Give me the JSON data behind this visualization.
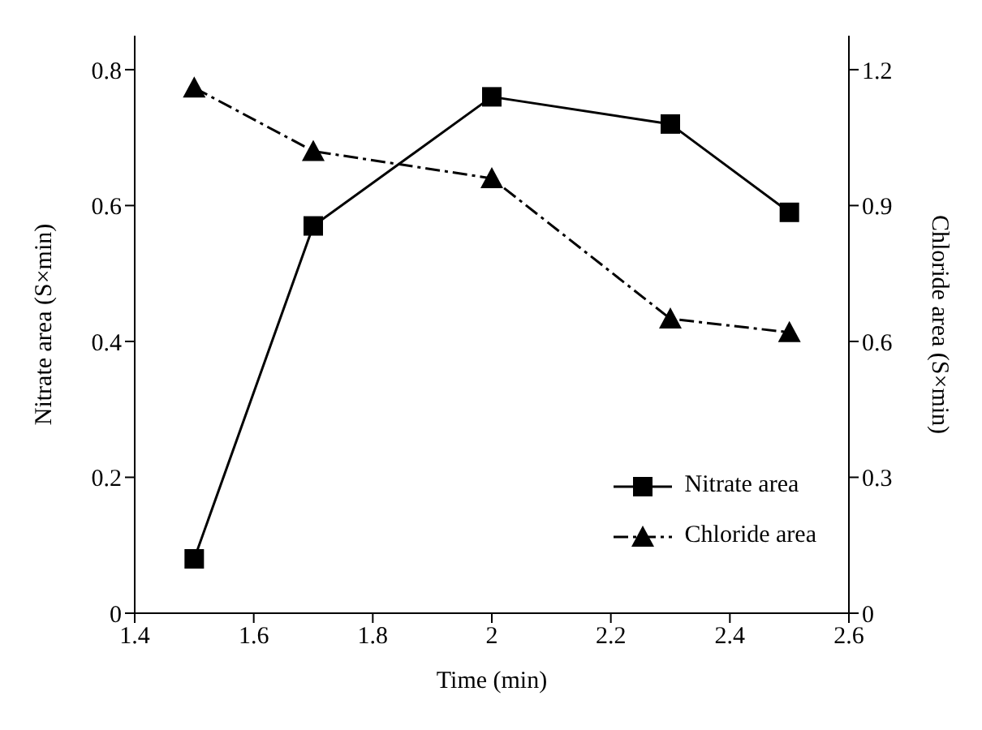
{
  "chart_data": {
    "type": "line",
    "xlabel": "Time (min)",
    "ylabel": "Nitrate area (S×min)",
    "y2label": "Chloride area (S×min)",
    "series": [
      {
        "name": "Nitrate area",
        "color": "#000000",
        "x": [
          1.5,
          1.7,
          2.0,
          2.3,
          2.5
        ],
        "values": [
          0.08,
          0.57,
          0.76,
          0.72,
          0.59
        ],
        "marker": "square",
        "line_style": "solid"
      },
      {
        "name": "Chloride area",
        "color": "#000000",
        "x": [
          1.5,
          1.7,
          2.0,
          2.3,
          2.5
        ],
        "values": [
          1.16,
          1.02,
          0.96,
          0.65,
          0.62
        ],
        "marker": "triangle",
        "line_style": "dashed",
        "axis": "y2"
      }
    ],
    "xlim": [
      1.4,
      2.6
    ],
    "xticks": [
      1.4,
      1.6,
      1.8,
      {
        "value": 2,
        "label": "2"
      },
      2.2,
      2.4,
      2.6
    ],
    "ylim": [
      0,
      0.85
    ],
    "yticks": [
      {
        "value": 0,
        "label": "0"
      },
      0.2,
      0.4,
      0.6,
      0.8
    ],
    "y2lim": [
      0,
      1.275
    ],
    "y2ticks": [
      {
        "value": 0,
        "label": "0"
      },
      0.3,
      0.6,
      0.9,
      1.2
    ],
    "grid": false,
    "legend": "bottom right"
  }
}
